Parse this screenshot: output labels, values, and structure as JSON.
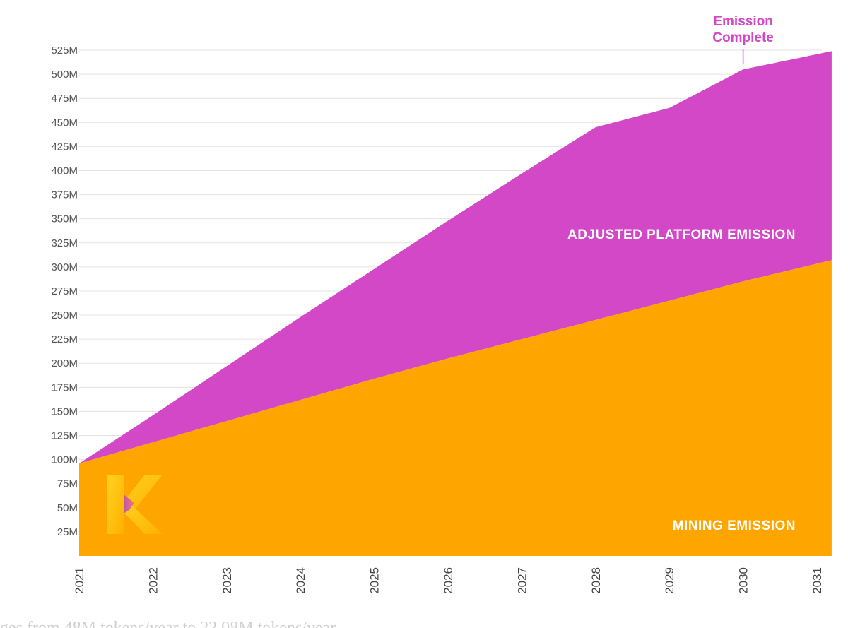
{
  "chart_data": {
    "type": "area",
    "stacked": true,
    "x": [
      "2021",
      "2022",
      "2023",
      "2024",
      "2025",
      "2026",
      "2027",
      "2028",
      "2029",
      "2030",
      "2031"
    ],
    "ylim": [
      0,
      525
    ],
    "yticks": [
      25,
      50,
      75,
      100,
      125,
      150,
      175,
      200,
      225,
      250,
      275,
      300,
      325,
      350,
      375,
      400,
      425,
      450,
      475,
      500,
      525
    ],
    "ytick_labels": [
      "25M",
      "50M",
      "75M",
      "100M",
      "125M",
      "150M",
      "175M",
      "200M",
      "225M",
      "250M",
      "275M",
      "300M",
      "325M",
      "350M",
      "375M",
      "400M",
      "425M",
      "450M",
      "475M",
      "500M",
      "525M"
    ],
    "grid": true,
    "series": [
      {
        "name": "MINING EMISSION",
        "color": "#FFA500",
        "points": [
          [
            2021.0,
            96
          ],
          [
            2022.0,
            118
          ],
          [
            2023.0,
            140
          ],
          [
            2024.0,
            162
          ],
          [
            2025.0,
            184
          ],
          [
            2026.0,
            205
          ],
          [
            2027.0,
            225
          ],
          [
            2028.0,
            245
          ],
          [
            2029.0,
            265
          ],
          [
            2030.0,
            285
          ],
          [
            2031.2,
            307
          ]
        ]
      },
      {
        "name": "ADJUSTED PLATFORM EMISSION",
        "color": "#D248C6",
        "points": [
          [
            2021.0,
            0
          ],
          [
            2022.0,
            28
          ],
          [
            2023.0,
            57
          ],
          [
            2024.0,
            86
          ],
          [
            2025.0,
            114
          ],
          [
            2026.0,
            143
          ],
          [
            2027.0,
            172
          ],
          [
            2028.0,
            200
          ],
          [
            2029.0,
            200
          ],
          [
            2030.0,
            220
          ],
          [
            2031.2,
            217
          ]
        ]
      }
    ],
    "annotations": [
      {
        "text_lines": [
          "Emission",
          "Complete"
        ],
        "x": 2030.0,
        "color": "#D248C6"
      }
    ]
  },
  "footer_text": "ges from 48M tokens/year to 22.08M tokens/year",
  "logo_letter": "K"
}
